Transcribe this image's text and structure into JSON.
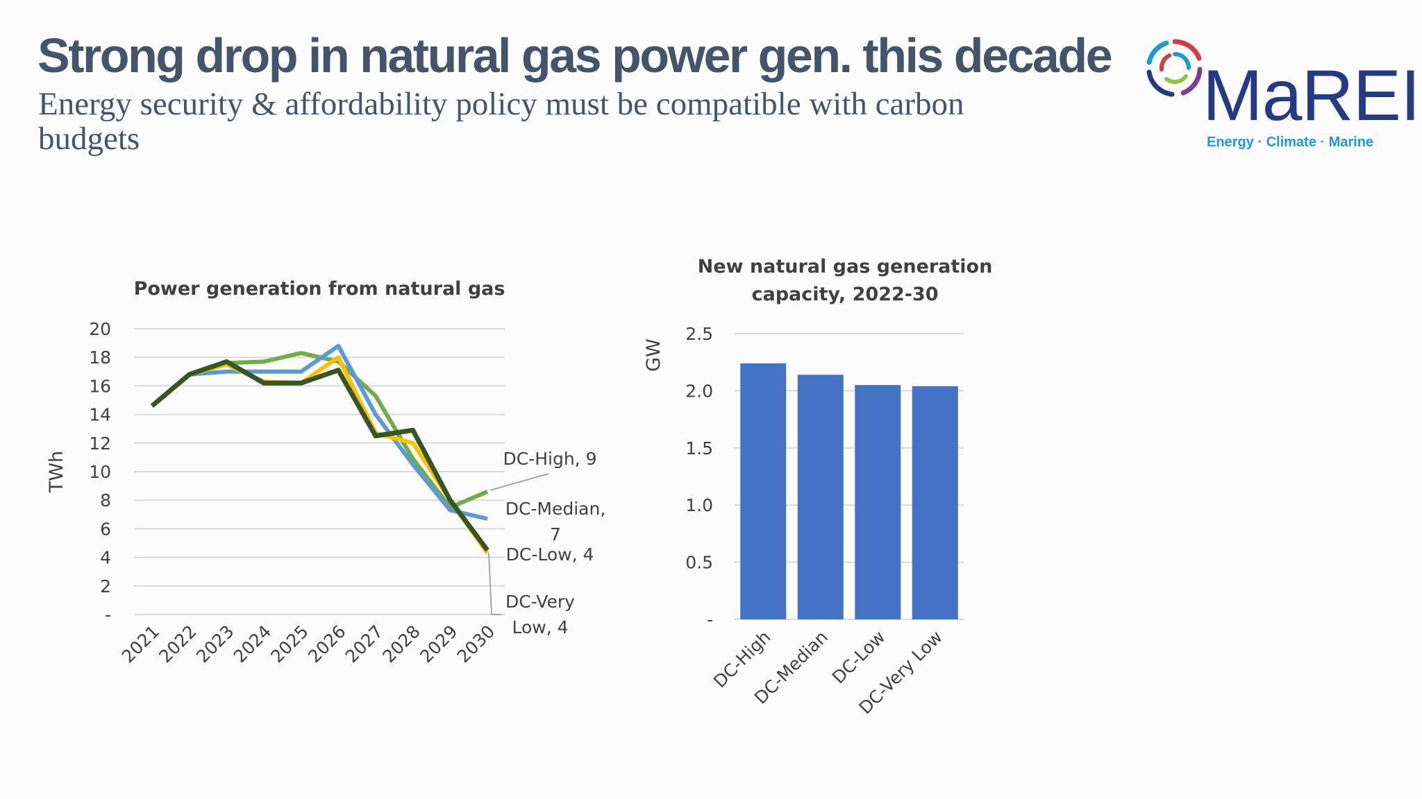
{
  "header": {
    "title": "Strong drop in natural gas power gen. this decade",
    "subtitle": "Energy security & affordability policy must be compatible with carbon budgets"
  },
  "logo": {
    "name": "MaREI",
    "tagline": "Energy · Climate · Marine",
    "colors": [
      "#1b9ad6",
      "#d63a3a",
      "#8dc63f",
      "#7b3f98",
      "#243a85"
    ]
  },
  "chart_data": [
    {
      "type": "line",
      "title": "Power generation from natural gas",
      "ylabel": "TWh",
      "xlabel": "",
      "ylim": [
        0,
        20
      ],
      "yticks": [
        0,
        2,
        4,
        6,
        8,
        10,
        12,
        14,
        16,
        18,
        20
      ],
      "ytick_labels": [
        "-",
        "2",
        "4",
        "6",
        "8",
        "10",
        "12",
        "14",
        "16",
        "18",
        "20"
      ],
      "categories": [
        "2021",
        "2022",
        "2023",
        "2024",
        "2025",
        "2026",
        "2027",
        "2028",
        "2029",
        "2030"
      ],
      "grid": true,
      "series": [
        {
          "name": "DC-High",
          "color": "#70ad47",
          "values": [
            14.6,
            16.8,
            17.6,
            17.7,
            18.3,
            17.7,
            15.3,
            10.9,
            7.5,
            8.6
          ]
        },
        {
          "name": "DC-Median",
          "color": "#5b9bd5",
          "values": [
            14.6,
            16.8,
            17.0,
            17.0,
            17.0,
            18.8,
            14.0,
            10.5,
            7.3,
            6.7
          ]
        },
        {
          "name": "DC-Very Low",
          "color": "#ffc000",
          "values": [
            14.6,
            16.8,
            17.5,
            16.3,
            16.2,
            18.0,
            12.7,
            12.0,
            8.0,
            4.3
          ]
        },
        {
          "name": "DC-Low",
          "color": "#375623",
          "values": [
            14.6,
            16.8,
            17.7,
            16.2,
            16.2,
            17.1,
            12.5,
            12.9,
            8.0,
            4.5
          ]
        }
      ],
      "data_labels": [
        {
          "series": "DC-High",
          "lines": [
            "DC-High,  9"
          ]
        },
        {
          "series": "DC-Median",
          "lines": [
            "DC-Median,",
            "7"
          ]
        },
        {
          "series": "DC-Low",
          "lines": [
            "DC-Low,  4"
          ]
        },
        {
          "series": "DC-Very Low",
          "lines": [
            "DC-Very",
            "Low,  4"
          ]
        }
      ]
    },
    {
      "type": "bar",
      "title_lines": [
        "New natural gas generation",
        "capacity, 2022-30"
      ],
      "ylabel": "GW",
      "xlabel": "",
      "ylim": [
        0,
        2.5
      ],
      "yticks": [
        0,
        0.5,
        1.0,
        1.5,
        2.0,
        2.5
      ],
      "ytick_labels": [
        "-",
        "0.5",
        "1.0",
        "1.5",
        "2.0",
        "2.5"
      ],
      "categories": [
        "DC-High",
        "DC-Median",
        "DC-Low",
        "DC-Very Low"
      ],
      "values": [
        2.24,
        2.14,
        2.05,
        2.04
      ],
      "color": "#4472c4",
      "grid": true
    }
  ]
}
